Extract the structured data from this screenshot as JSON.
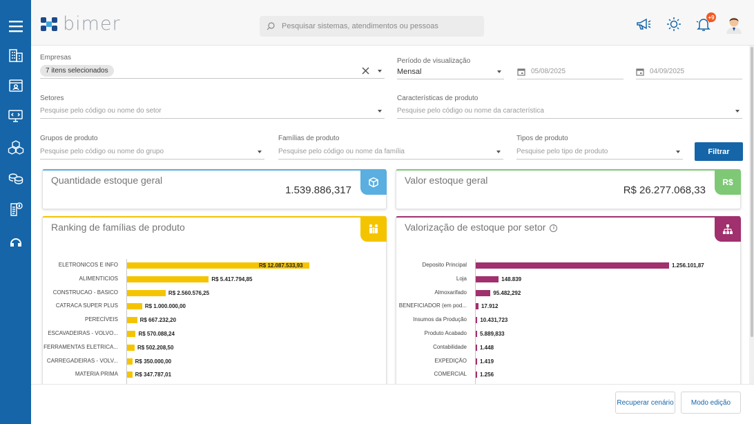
{
  "app": {
    "logo_text": "bimer"
  },
  "search": {
    "placeholder": "Pesquisar sistemas, atendimentos ou pessoas"
  },
  "topbar": {
    "notification_count": "+9"
  },
  "sidebar_icons": [
    "menu-icon",
    "building-icon",
    "contact-card-icon",
    "monitor-code-icon",
    "boxes-icon",
    "coins-icon",
    "document-dollar-icon",
    "support-icon"
  ],
  "filters": {
    "empresas": {
      "label": "Empresas",
      "chip": "7 itens selecionados"
    },
    "periodo": {
      "label": "Período de visualização",
      "value": "Mensal"
    },
    "data_inicio": {
      "value": "05/08/2025"
    },
    "data_fim": {
      "value": "04/09/2025"
    },
    "setores": {
      "label": "Setores",
      "placeholder": "Pesquise pelo código ou nome do setor"
    },
    "caracteristicas": {
      "label": "Características de produto",
      "placeholder": "Pesquise pelo código ou nome da característica"
    },
    "grupos": {
      "label": "Grupos de produto",
      "placeholder": "Pesquise pelo código ou nome do grupo"
    },
    "familias": {
      "label": "Famílias de produto",
      "placeholder": "Pesquise pelo código ou nome da família"
    },
    "tipos": {
      "label": "Tipos de produto",
      "placeholder": "Pesquise pelo tipo de produto"
    },
    "filter_button": "Filtrar"
  },
  "kpis": {
    "quantidade": {
      "title": "Quantidade estoque geral",
      "value": "1.539.886,317",
      "color": "#5aaee0"
    },
    "valor": {
      "title": "Valor estoque geral",
      "value": "R$ 26.277.068,33",
      "color": "#7ec876"
    }
  },
  "chart_data": [
    {
      "type": "bar",
      "title": "Ranking de famílias de produto",
      "color": "#f5c400",
      "categories": [
        "ELETRONICOS E INFO",
        "ALIMENTICIOS",
        "CONSTRUCAO - BASICO",
        "CATRACA SUPER PLUS",
        "PERECÍVEIS",
        "ESCAVADEIRAS - VOLVO...",
        "FERRAMENTAS ELETRICA...",
        "CARREGADEIRAS - VOLV...",
        "MATERIA PRIMA"
      ],
      "values": [
        12087533.93,
        5417794.85,
        2560576.25,
        1000000.0,
        667232.2,
        570088.24,
        502208.5,
        350000.0,
        347787.01
      ],
      "value_labels": [
        "R$ 12.087.533,93",
        "R$ 5.417.794,85",
        "R$ 2.560.576,25",
        "R$ 1.000.000,00",
        "R$ 667.232,20",
        "R$ 570.088,24",
        "R$ 502.208,50",
        "R$ 350.000,00",
        "R$ 347.787,01"
      ]
    },
    {
      "type": "bar",
      "title": "Valorização de estoque por setor",
      "color": "#a0306e",
      "categories": [
        "Deposito Principal",
        "Loja",
        "Almoxarifado",
        "BENEFICIADOR (em pod...",
        "Insumos da Produção",
        "Produto Acabado",
        "Contabilidade",
        "EXPEDIÇÃO",
        "COMERCIAL"
      ],
      "values": [
        1256101.87,
        148839,
        95482.292,
        17912,
        10431.723,
        5889.833,
        1448,
        1419,
        1256
      ],
      "value_labels": [
        "1.256.101,87",
        "148.839",
        "95.482,292",
        "17.912",
        "10.431,723",
        "5.889,833",
        "1.448",
        "1.419",
        "1.256"
      ]
    }
  ],
  "footer": {
    "recover_label": "Recuperar cenário",
    "edit_label": "Modo edição"
  }
}
